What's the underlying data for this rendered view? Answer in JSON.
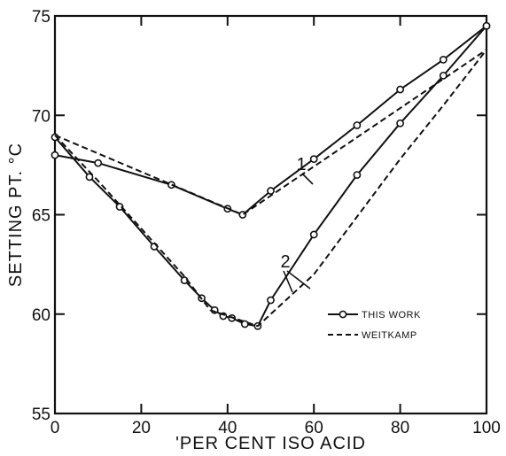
{
  "chart_data": {
    "type": "line",
    "title": "",
    "xlabel": "'PER CENT ISO ACID",
    "ylabel": "SETTING PT. °C",
    "xlim": [
      0,
      100
    ],
    "ylim": [
      55,
      75
    ],
    "x_ticks": [
      0,
      20,
      40,
      60,
      80,
      100
    ],
    "y_ticks": [
      55,
      60,
      65,
      70,
      75
    ],
    "x_tick_labels": [
      "0",
      "20",
      "40",
      "60",
      "80",
      "100"
    ],
    "y_tick_labels": [
      "55",
      "60",
      "65",
      "70",
      "75"
    ],
    "grid": false,
    "legend_position": "lower-right",
    "curve_labels": [
      "1",
      "2"
    ],
    "series": [
      {
        "name": "THIS WORK",
        "curve": "1",
        "style": "solid-circles",
        "x": [
          0,
          10,
          27,
          40,
          43.5,
          50,
          60,
          70,
          80,
          90,
          100
        ],
        "y": [
          68.0,
          67.6,
          66.5,
          65.3,
          65.0,
          66.2,
          67.8,
          69.5,
          71.3,
          72.8,
          74.5
        ]
      },
      {
        "name": "WEITKAMP",
        "curve": "1",
        "style": "dashed",
        "x": [
          0,
          43.5,
          100
        ],
        "y": [
          69.0,
          65.0,
          73.3
        ]
      },
      {
        "name": "THIS WORK",
        "curve": "2",
        "style": "solid-circles",
        "x": [
          0,
          8,
          15,
          23,
          30,
          34,
          37,
          39,
          41,
          44,
          47,
          50,
          60,
          70,
          80,
          90,
          100
        ],
        "y": [
          68.9,
          66.9,
          65.4,
          63.4,
          61.7,
          60.8,
          60.2,
          59.9,
          59.8,
          59.5,
          59.4,
          60.7,
          64.0,
          67.0,
          69.6,
          72.0,
          74.5
        ]
      },
      {
        "name": "WEITKAMP",
        "curve": "2",
        "style": "dashed",
        "x": [
          0,
          10,
          20,
          30,
          36,
          47,
          60,
          80,
          90,
          100
        ],
        "y": [
          69.0,
          66.7,
          64.3,
          61.9,
          60.2,
          59.4,
          62.0,
          67.8,
          70.5,
          73.3
        ]
      }
    ],
    "legend": [
      {
        "label": "THIS WORK",
        "style": "solid-circles"
      },
      {
        "label": "WEITKAMP",
        "style": "dashed"
      }
    ]
  }
}
